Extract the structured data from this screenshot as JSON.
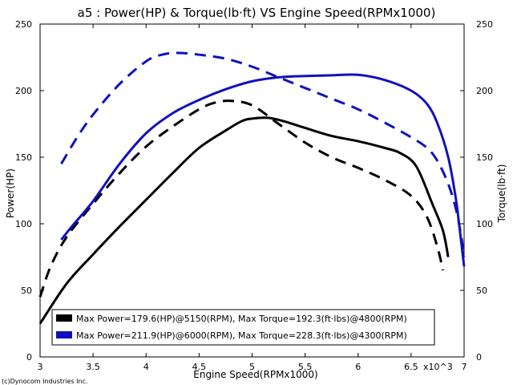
{
  "chart_data": {
    "type": "line",
    "title": "a5 : Power(HP) & Torque(lb·ft) VS Engine Speed(RPMx1000)",
    "xlabel": "Engine Speed(RPMx1000)",
    "ylabel_left": "Power(HP)",
    "ylabel_right": "Torque(lb·ft)",
    "xlim": [
      3,
      7
    ],
    "ylim": [
      0,
      250
    ],
    "x_ticks": [
      "3",
      "3.5",
      "4",
      "4.5",
      "5",
      "5.5",
      "6",
      "6.5",
      "7"
    ],
    "x_multiplier_label": "x10^3",
    "y_ticks": [
      "0",
      "50",
      "100",
      "150",
      "200",
      "250"
    ],
    "grid": false,
    "legend_position": "bottom-left",
    "series": [
      {
        "name": "Max Power=179.6(HP)@5150(RPM), Max Torque=192.3(ft·lbs)@4800(RPM)",
        "color": "#000000",
        "power": {
          "x": [
            3.0,
            3.25,
            3.5,
            3.75,
            4.0,
            4.25,
            4.5,
            4.75,
            4.9,
            5.0,
            5.15,
            5.3,
            5.5,
            5.75,
            6.0,
            6.25,
            6.4,
            6.55,
            6.7,
            6.8,
            6.85
          ],
          "y": [
            25,
            55,
            77,
            98,
            118,
            138,
            157,
            170,
            177,
            179,
            179.6,
            177,
            172,
            166,
            162,
            157,
            153,
            143,
            115,
            95,
            75
          ]
        },
        "torque": {
          "x": [
            3.0,
            3.1,
            3.25,
            3.5,
            3.75,
            4.0,
            4.25,
            4.5,
            4.65,
            4.8,
            5.0,
            5.25,
            5.5,
            5.75,
            6.0,
            6.25,
            6.5,
            6.65,
            6.75,
            6.8
          ],
          "y": [
            45,
            68,
            90,
            115,
            138,
            158,
            173,
            186,
            191,
            192.3,
            189,
            175,
            161,
            150,
            142,
            133,
            121,
            105,
            82,
            65
          ]
        }
      },
      {
        "name": "Max Power=211.9(HP)@6000(RPM), Max Torque=228.3(ft·lbs)@4300(RPM)",
        "color": "#1010c0",
        "power": {
          "x": [
            3.2,
            3.3,
            3.5,
            3.75,
            4.0,
            4.25,
            4.5,
            4.75,
            5.0,
            5.25,
            5.5,
            5.75,
            6.0,
            6.25,
            6.5,
            6.65,
            6.75,
            6.85,
            6.92,
            6.96,
            7.0
          ],
          "y": [
            88,
            98,
            117,
            145,
            168,
            183,
            193,
            201,
            207,
            210,
            211,
            211.5,
            211.9,
            208,
            200,
            190,
            175,
            150,
            120,
            95,
            68
          ]
        },
        "torque": {
          "x": [
            3.2,
            3.35,
            3.5,
            3.75,
            4.0,
            4.15,
            4.3,
            4.5,
            4.75,
            5.0,
            5.25,
            5.5,
            5.75,
            6.0,
            6.25,
            6.5,
            6.65,
            6.75,
            6.85,
            6.92,
            6.97,
            7.0
          ],
          "y": [
            145,
            165,
            182,
            205,
            222,
            227,
            228.3,
            227,
            224,
            218,
            210,
            202,
            194,
            186,
            176,
            165,
            157,
            147,
            130,
            112,
            92,
            75
          ]
        }
      }
    ]
  },
  "copyright": "(c)Dynocom Industries Inc."
}
